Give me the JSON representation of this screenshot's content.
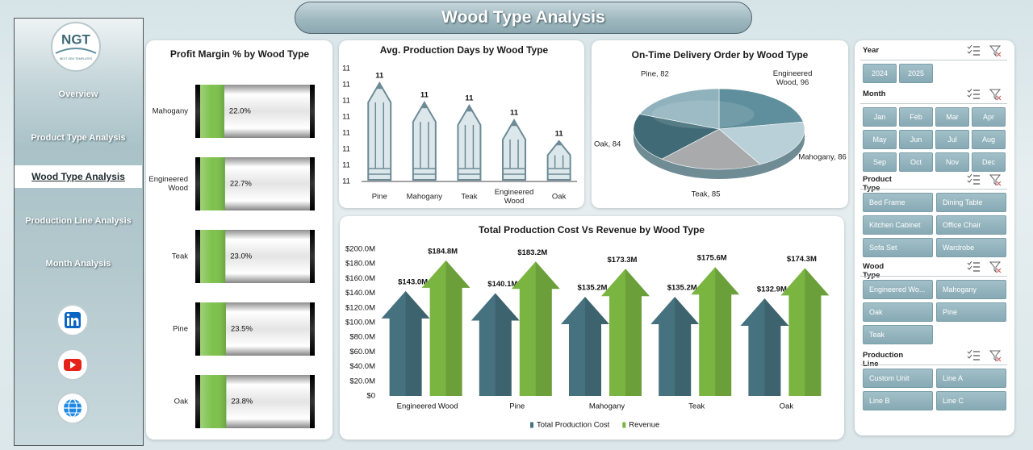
{
  "header": {
    "title": "Wood Type Analysis"
  },
  "sidebar": {
    "logo": "NGT",
    "logo_sub": "NEXT GEN TEMPLATES",
    "nav": [
      {
        "label": "Overview"
      },
      {
        "label": "Product Type Analysis"
      },
      {
        "label": "Wood Type Analysis",
        "active": true
      },
      {
        "label": "Production Line Analysis"
      },
      {
        "label": "Month Analysis"
      }
    ]
  },
  "chart_data": [
    {
      "type": "bar",
      "style": "battery",
      "title": "Profit Margin % by Wood Type",
      "categories": [
        "Mahogany",
        "Engineered Wood",
        "Teak",
        "Pine",
        "Oak"
      ],
      "values": [
        22.0,
        22.7,
        23.0,
        23.5,
        23.8
      ],
      "value_labels": [
        "22.0%",
        "22.7%",
        "23.0%",
        "23.5%",
        "23.8%"
      ],
      "xlim": [
        0,
        100
      ],
      "color": "#7dc14b"
    },
    {
      "type": "column",
      "style": "pencil",
      "title": "Avg. Production Days by Wood Type",
      "categories": [
        "Pine",
        "Mahogany",
        "Teak",
        "Engineered Wood",
        "Oak"
      ],
      "values": [
        11.21,
        11.09,
        11.07,
        10.98,
        10.85
      ],
      "value_labels": [
        "11",
        "11",
        "11",
        "11",
        "11"
      ],
      "ylim": [
        10.6,
        11.3
      ],
      "yticks": [
        {
          "value": 10.6,
          "label": "11"
        },
        {
          "value": 10.7,
          "label": "11"
        },
        {
          "value": 10.8,
          "label": "11"
        },
        {
          "value": 10.9,
          "label": "11"
        },
        {
          "value": 11.0,
          "label": "11"
        },
        {
          "value": 11.1,
          "label": "11"
        },
        {
          "value": 11.2,
          "label": "11"
        },
        {
          "value": 11.3,
          "label": "11"
        }
      ],
      "color": "#dce7eb"
    },
    {
      "type": "pie",
      "title": "On-Time Delivery Order by Wood Type",
      "categories": [
        "Engineered Wood",
        "Mahogany",
        "Teak",
        "Oak",
        "Pine"
      ],
      "values": [
        96,
        86,
        85,
        84,
        82
      ],
      "value_labels": [
        "Engineered Wood, 96",
        "Mahogany, 86",
        "Teak, 85",
        "Oak, 84",
        "Pine, 82"
      ],
      "colors": [
        "#5f8f9c",
        "#b9d0d8",
        "#a8aaab",
        "#3f6a76",
        "#8fb2bc"
      ]
    },
    {
      "type": "column",
      "style": "arrow",
      "title": "Total Production Cost Vs Revenue by Wood Type",
      "categories": [
        "Engineered Wood",
        "Pine",
        "Mahogany",
        "Teak",
        "Oak"
      ],
      "series": [
        {
          "name": "Total Production Cost",
          "color": "#46717e",
          "values": [
            143.0,
            140.1,
            135.2,
            135.2,
            132.9
          ],
          "value_labels": [
            "$143.0M",
            "$140.1M",
            "$135.2M",
            "$135.2M",
            "$132.9M"
          ]
        },
        {
          "name": "Revenue",
          "color": "#7ab542",
          "values": [
            184.8,
            183.2,
            173.3,
            175.6,
            174.3
          ],
          "value_labels": [
            "$184.8M",
            "$183.2M",
            "$173.3M",
            "$175.6M",
            "$174.3M"
          ]
        }
      ],
      "ylim": [
        0,
        200
      ],
      "yticks": [
        {
          "value": 0,
          "label": "$0"
        },
        {
          "value": 20,
          "label": "$20.0M"
        },
        {
          "value": 40,
          "label": "$40.0M"
        },
        {
          "value": 60,
          "label": "$60.0M"
        },
        {
          "value": 80,
          "label": "$80.0M"
        },
        {
          "value": 100,
          "label": "$100.0M"
        },
        {
          "value": 120,
          "label": "$120.0M"
        },
        {
          "value": 140,
          "label": "$140.0M"
        },
        {
          "value": 160,
          "label": "$160.0M"
        },
        {
          "value": 180,
          "label": "$180.0M"
        },
        {
          "value": 200,
          "label": "$200.0M"
        }
      ],
      "legend": "bottom"
    }
  ],
  "slicers": [
    {
      "title": "Year",
      "items": [
        "2024",
        "2025"
      ]
    },
    {
      "title": "Month",
      "items": [
        "Jan",
        "Feb",
        "Mar",
        "Apr",
        "May",
        "Jun",
        "Jul",
        "Aug",
        "Sep",
        "Oct",
        "Nov",
        "Dec"
      ]
    },
    {
      "title": "Product Type",
      "items": [
        "Bed Frame",
        "Dining Table",
        "Kitchen Cabinet",
        "Office Chair",
        "Sofa Set",
        "Wardrobe"
      ]
    },
    {
      "title": "Wood Type",
      "items": [
        "Engineered Wo...",
        "Mahogany",
        "Oak",
        "Pine",
        "Teak"
      ]
    },
    {
      "title": "Production Line",
      "items": [
        "Custom Unit",
        "Line A",
        "Line B",
        "Line C"
      ]
    }
  ]
}
